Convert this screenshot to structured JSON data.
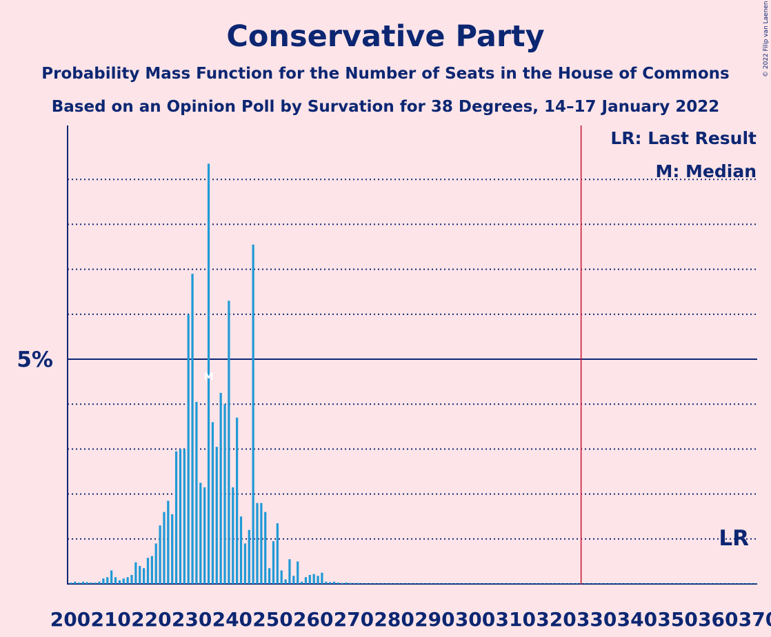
{
  "chart_data": {
    "type": "bar",
    "title": "Conservative Party",
    "subtitle1": "Probability Mass Function for the Number of Seats in the House of Commons",
    "subtitle2": "Based on an Opinion Poll by Survation for 38 Degrees, 14–17 January 2022",
    "copyright": "© 2022 Filip van Laenen",
    "legend": {
      "lr": "LR: Last Result",
      "m": "M: Median"
    },
    "ylabel_5": "5%",
    "lr_label": "LR",
    "median_label": "M",
    "median_seat": 234,
    "last_result_seat": 326,
    "xlim": [
      200,
      370
    ],
    "ylim": [
      0,
      10.2
    ],
    "y_major": 5,
    "y_gridlines": [
      1,
      2,
      3,
      4,
      6,
      7,
      8,
      9
    ],
    "x_ticks": [
      "200",
      "210",
      "220",
      "230",
      "240",
      "250",
      "260",
      "270",
      "280",
      "290",
      "300",
      "310",
      "320",
      "330",
      "340",
      "350",
      "360",
      "370"
    ],
    "seats_start": 200,
    "values": [
      0.03,
      0.05,
      0.03,
      0.05,
      0.04,
      0.03,
      0.03,
      0.05,
      0.12,
      0.15,
      0.3,
      0.15,
      0.08,
      0.12,
      0.15,
      0.2,
      0.48,
      0.4,
      0.35,
      0.58,
      0.62,
      0.9,
      1.3,
      1.6,
      1.85,
      1.55,
      2.95,
      3.0,
      3.0,
      6.0,
      6.9,
      4.05,
      2.25,
      2.15,
      9.35,
      3.6,
      3.05,
      4.25,
      4.0,
      6.3,
      2.15,
      3.7,
      1.5,
      0.9,
      1.2,
      7.55,
      1.8,
      1.8,
      1.6,
      0.35,
      0.95,
      1.35,
      0.3,
      0.1,
      0.55,
      0.18,
      0.5,
      0.05,
      0.15,
      0.2,
      0.22,
      0.18,
      0.25,
      0.05,
      0.04,
      0.05,
      0.03,
      0.02,
      0.03,
      0.02,
      0.02,
      0.02,
      0.01,
      0.01,
      0.01,
      0.01,
      0.01,
      0.01,
      0.01,
      0.01,
      0.01,
      0.01,
      0.01,
      0.01,
      0.01,
      0.01,
      0.01,
      0.01,
      0.01,
      0.01,
      0.01,
      0.01,
      0.01,
      0.01,
      0.01,
      0.01,
      0.01,
      0.01,
      0.01,
      0.01,
      0.01,
      0.01,
      0.01,
      0.01,
      0.01,
      0.01,
      0.01,
      0.01,
      0.01,
      0.01,
      0.01,
      0.01,
      0.01,
      0.01,
      0.01,
      0.01,
      0.01,
      0.01,
      0.01,
      0.01,
      0.01,
      0.01,
      0.01,
      0.01,
      0.01,
      0.01,
      0.01,
      0.01,
      0.01,
      0.01,
      0.01,
      0.01,
      0.01,
      0.01,
      0.01,
      0.01,
      0.01,
      0.01,
      0.01,
      0.01,
      0.01,
      0.01,
      0.01,
      0.01,
      0.01,
      0.01,
      0.01,
      0.01,
      0.01,
      0.01,
      0.01,
      0.01,
      0.01,
      0.01,
      0.01,
      0.01,
      0.01,
      0.01,
      0.01,
      0.01,
      0.01,
      0.01,
      0.01,
      0.01,
      0.01,
      0.01,
      0.01,
      0.01,
      0.01,
      0.01
    ],
    "colors": {
      "bar": "#1f9ad6",
      "text": "#0c2672",
      "background": "#fde4e8",
      "last_result_line": "#c8102e",
      "grid": "#0c2672"
    }
  }
}
